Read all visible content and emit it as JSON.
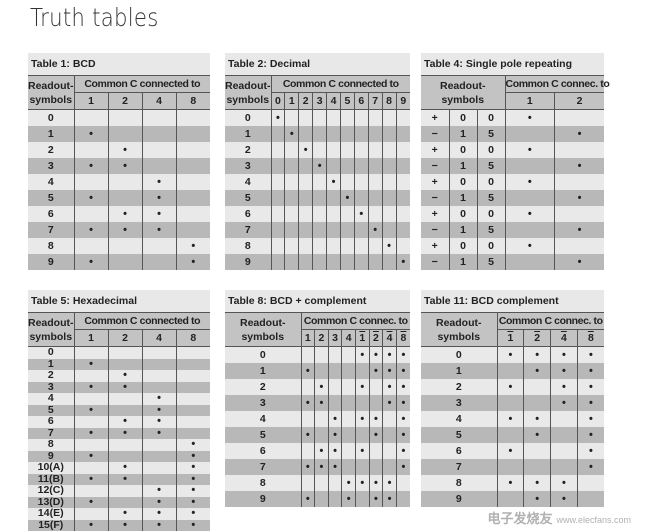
{
  "page_title": "Truth tables",
  "watermark": {
    "logo_text": "电子发烧友",
    "url": "www.elecfans.com"
  },
  "colors": {
    "title_band": "#e8e8e8",
    "header": "#c3c3c3",
    "row_light": "#e9e9e9",
    "row_dark": "#b8b8b8",
    "rule": "#555555"
  },
  "tables": [
    {
      "id": "t1",
      "title": "Table 1: BCD",
      "readout_header": [
        "Readout-",
        "symbols"
      ],
      "group_header": "Common C connected to",
      "columns": [
        {
          "label": "1"
        },
        {
          "label": "2"
        },
        {
          "label": "4"
        },
        {
          "label": "8"
        }
      ],
      "rows": [
        {
          "readout": [
            "0"
          ],
          "dots": [
            0,
            0,
            0,
            0
          ]
        },
        {
          "readout": [
            "1"
          ],
          "dots": [
            1,
            0,
            0,
            0
          ]
        },
        {
          "readout": [
            "2"
          ],
          "dots": [
            0,
            1,
            0,
            0
          ]
        },
        {
          "readout": [
            "3"
          ],
          "dots": [
            1,
            1,
            0,
            0
          ]
        },
        {
          "readout": [
            "4"
          ],
          "dots": [
            0,
            0,
            1,
            0
          ]
        },
        {
          "readout": [
            "5"
          ],
          "dots": [
            1,
            0,
            1,
            0
          ]
        },
        {
          "readout": [
            "6"
          ],
          "dots": [
            0,
            1,
            1,
            0
          ]
        },
        {
          "readout": [
            "7"
          ],
          "dots": [
            1,
            1,
            1,
            0
          ]
        },
        {
          "readout": [
            "8"
          ],
          "dots": [
            0,
            0,
            0,
            1
          ]
        },
        {
          "readout": [
            "9"
          ],
          "dots": [
            1,
            0,
            0,
            1
          ]
        }
      ]
    },
    {
      "id": "t2",
      "title": "Table 2: Decimal",
      "readout_header": [
        "Readout-",
        "symbols"
      ],
      "group_header": "Common C connected to",
      "columns": [
        {
          "label": "0"
        },
        {
          "label": "1"
        },
        {
          "label": "2"
        },
        {
          "label": "3"
        },
        {
          "label": "4"
        },
        {
          "label": "5"
        },
        {
          "label": "6"
        },
        {
          "label": "7"
        },
        {
          "label": "8"
        },
        {
          "label": "9"
        }
      ],
      "rows": [
        {
          "readout": [
            "0"
          ],
          "dots": [
            1,
            0,
            0,
            0,
            0,
            0,
            0,
            0,
            0,
            0
          ]
        },
        {
          "readout": [
            "1"
          ],
          "dots": [
            0,
            1,
            0,
            0,
            0,
            0,
            0,
            0,
            0,
            0
          ]
        },
        {
          "readout": [
            "2"
          ],
          "dots": [
            0,
            0,
            1,
            0,
            0,
            0,
            0,
            0,
            0,
            0
          ]
        },
        {
          "readout": [
            "3"
          ],
          "dots": [
            0,
            0,
            0,
            1,
            0,
            0,
            0,
            0,
            0,
            0
          ]
        },
        {
          "readout": [
            "4"
          ],
          "dots": [
            0,
            0,
            0,
            0,
            1,
            0,
            0,
            0,
            0,
            0
          ]
        },
        {
          "readout": [
            "5"
          ],
          "dots": [
            0,
            0,
            0,
            0,
            0,
            1,
            0,
            0,
            0,
            0
          ]
        },
        {
          "readout": [
            "6"
          ],
          "dots": [
            0,
            0,
            0,
            0,
            0,
            0,
            1,
            0,
            0,
            0
          ]
        },
        {
          "readout": [
            "7"
          ],
          "dots": [
            0,
            0,
            0,
            0,
            0,
            0,
            0,
            1,
            0,
            0
          ]
        },
        {
          "readout": [
            "8"
          ],
          "dots": [
            0,
            0,
            0,
            0,
            0,
            0,
            0,
            0,
            1,
            0
          ]
        },
        {
          "readout": [
            "9"
          ],
          "dots": [
            0,
            0,
            0,
            0,
            0,
            0,
            0,
            0,
            0,
            1
          ]
        }
      ]
    },
    {
      "id": "t4",
      "title": "Table 4: Single pole repeating",
      "readout_header": [
        "Readout-",
        "symbols"
      ],
      "group_header": "Common C connec. to",
      "columns": [
        {
          "label": "1"
        },
        {
          "label": "2"
        }
      ],
      "rows": [
        {
          "readout": [
            "+",
            "0",
            "0"
          ],
          "dots": [
            1,
            0
          ]
        },
        {
          "readout": [
            "−",
            "1",
            "5"
          ],
          "dots": [
            0,
            1
          ]
        },
        {
          "readout": [
            "+",
            "0",
            "0"
          ],
          "dots": [
            1,
            0
          ]
        },
        {
          "readout": [
            "−",
            "1",
            "5"
          ],
          "dots": [
            0,
            1
          ]
        },
        {
          "readout": [
            "+",
            "0",
            "0"
          ],
          "dots": [
            1,
            0
          ]
        },
        {
          "readout": [
            "−",
            "1",
            "5"
          ],
          "dots": [
            0,
            1
          ]
        },
        {
          "readout": [
            "+",
            "0",
            "0"
          ],
          "dots": [
            1,
            0
          ]
        },
        {
          "readout": [
            "−",
            "1",
            "5"
          ],
          "dots": [
            0,
            1
          ]
        },
        {
          "readout": [
            "+",
            "0",
            "0"
          ],
          "dots": [
            1,
            0
          ]
        },
        {
          "readout": [
            "−",
            "1",
            "5"
          ],
          "dots": [
            0,
            1
          ]
        }
      ]
    },
    {
      "id": "t5",
      "title": "Table 5: Hexadecimal",
      "readout_header": [
        "Readout-",
        "symbols"
      ],
      "group_header": "Common C connected to",
      "columns": [
        {
          "label": "1"
        },
        {
          "label": "2"
        },
        {
          "label": "4"
        },
        {
          "label": "8"
        }
      ],
      "rows": [
        {
          "readout": [
            "0"
          ],
          "dots": [
            0,
            0,
            0,
            0
          ]
        },
        {
          "readout": [
            "1"
          ],
          "dots": [
            1,
            0,
            0,
            0
          ]
        },
        {
          "readout": [
            "2"
          ],
          "dots": [
            0,
            1,
            0,
            0
          ]
        },
        {
          "readout": [
            "3"
          ],
          "dots": [
            1,
            1,
            0,
            0
          ]
        },
        {
          "readout": [
            "4"
          ],
          "dots": [
            0,
            0,
            1,
            0
          ]
        },
        {
          "readout": [
            "5"
          ],
          "dots": [
            1,
            0,
            1,
            0
          ]
        },
        {
          "readout": [
            "6"
          ],
          "dots": [
            0,
            1,
            1,
            0
          ]
        },
        {
          "readout": [
            "7"
          ],
          "dots": [
            1,
            1,
            1,
            0
          ]
        },
        {
          "readout": [
            "8"
          ],
          "dots": [
            0,
            0,
            0,
            1
          ]
        },
        {
          "readout": [
            "9"
          ],
          "dots": [
            1,
            0,
            0,
            1
          ]
        },
        {
          "readout": [
            "10(A)"
          ],
          "dots": [
            0,
            1,
            0,
            1
          ]
        },
        {
          "readout": [
            "11(B)"
          ],
          "dots": [
            1,
            1,
            0,
            1
          ]
        },
        {
          "readout": [
            "12(C)"
          ],
          "dots": [
            0,
            0,
            1,
            1
          ]
        },
        {
          "readout": [
            "13(D)"
          ],
          "dots": [
            1,
            0,
            1,
            1
          ]
        },
        {
          "readout": [
            "14(E)"
          ],
          "dots": [
            0,
            1,
            1,
            1
          ]
        },
        {
          "readout": [
            "15(F)"
          ],
          "dots": [
            1,
            1,
            1,
            1
          ]
        }
      ]
    },
    {
      "id": "t8",
      "title": "Table 8: BCD + complement",
      "readout_header": [
        "Readout-",
        "symbols"
      ],
      "group_header": "Common C connec. to",
      "columns": [
        {
          "label": "1"
        },
        {
          "label": "2"
        },
        {
          "label": "3"
        },
        {
          "label": "4"
        },
        {
          "label": "1",
          "bar": true
        },
        {
          "label": "2",
          "bar": true
        },
        {
          "label": "4",
          "bar": true
        },
        {
          "label": "8",
          "bar": true
        }
      ],
      "rows": [
        {
          "readout": [
            "0"
          ],
          "dots": [
            0,
            0,
            0,
            0,
            1,
            1,
            1,
            1
          ]
        },
        {
          "readout": [
            "1"
          ],
          "dots": [
            1,
            0,
            0,
            0,
            0,
            1,
            1,
            1
          ]
        },
        {
          "readout": [
            "2"
          ],
          "dots": [
            0,
            1,
            0,
            0,
            1,
            0,
            1,
            1
          ]
        },
        {
          "readout": [
            "3"
          ],
          "dots": [
            1,
            1,
            0,
            0,
            0,
            0,
            1,
            1
          ]
        },
        {
          "readout": [
            "4"
          ],
          "dots": [
            0,
            0,
            1,
            0,
            1,
            1,
            0,
            1
          ]
        },
        {
          "readout": [
            "5"
          ],
          "dots": [
            1,
            0,
            1,
            0,
            0,
            1,
            0,
            1
          ]
        },
        {
          "readout": [
            "6"
          ],
          "dots": [
            0,
            1,
            1,
            0,
            1,
            0,
            0,
            1
          ]
        },
        {
          "readout": [
            "7"
          ],
          "dots": [
            1,
            1,
            1,
            0,
            0,
            0,
            0,
            1
          ]
        },
        {
          "readout": [
            "8"
          ],
          "dots": [
            0,
            0,
            0,
            1,
            1,
            1,
            1,
            0
          ]
        },
        {
          "readout": [
            "9"
          ],
          "dots": [
            1,
            0,
            0,
            1,
            0,
            1,
            1,
            0
          ]
        }
      ]
    },
    {
      "id": "t11",
      "title": "Table 11: BCD complement",
      "readout_header": [
        "Readout-",
        "symbols"
      ],
      "group_header": "Common C connec. to",
      "columns": [
        {
          "label": "1",
          "bar": true
        },
        {
          "label": "2",
          "bar": true
        },
        {
          "label": "4",
          "bar": true
        },
        {
          "label": "8",
          "bar": true
        }
      ],
      "rows": [
        {
          "readout": [
            "0"
          ],
          "dots": [
            1,
            1,
            1,
            1
          ]
        },
        {
          "readout": [
            "1"
          ],
          "dots": [
            0,
            1,
            1,
            1
          ]
        },
        {
          "readout": [
            "2"
          ],
          "dots": [
            1,
            0,
            1,
            1
          ]
        },
        {
          "readout": [
            "3"
          ],
          "dots": [
            0,
            0,
            1,
            1
          ]
        },
        {
          "readout": [
            "4"
          ],
          "dots": [
            1,
            1,
            0,
            1
          ]
        },
        {
          "readout": [
            "5"
          ],
          "dots": [
            0,
            1,
            0,
            1
          ]
        },
        {
          "readout": [
            "6"
          ],
          "dots": [
            1,
            0,
            0,
            1
          ]
        },
        {
          "readout": [
            "7"
          ],
          "dots": [
            0,
            0,
            0,
            1
          ]
        },
        {
          "readout": [
            "8"
          ],
          "dots": [
            1,
            1,
            1,
            0
          ]
        },
        {
          "readout": [
            "9"
          ],
          "dots": [
            0,
            1,
            1,
            0
          ]
        }
      ]
    }
  ]
}
